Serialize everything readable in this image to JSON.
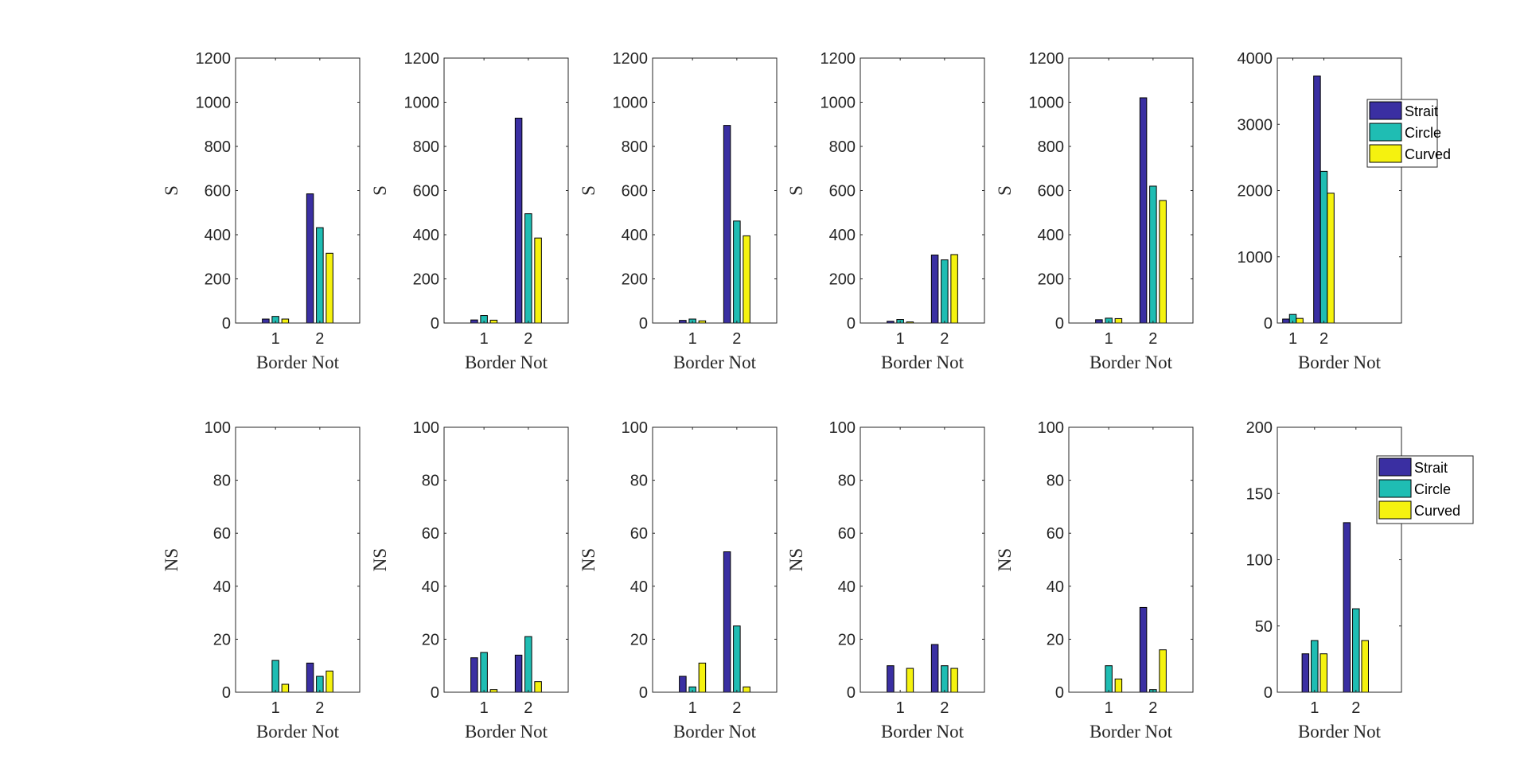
{
  "figure": {
    "background": "#ffffff",
    "series_colors": {
      "Strait": "#3a2fa2",
      "Circle": "#1fbdb3",
      "Curved": "#f5f20f"
    }
  },
  "chart_data": [
    {
      "type": "bar",
      "row": 1,
      "col": 1,
      "categories": [
        "1",
        "2"
      ],
      "xlabel": "Border Not",
      "ylabel": "S",
      "ylim": [
        0,
        1200
      ],
      "yticks": [
        0,
        200,
        400,
        600,
        800,
        1000,
        1200
      ],
      "xlim": [
        0.1,
        2.9
      ],
      "grid": false,
      "legend": false,
      "series": [
        {
          "name": "Strait",
          "values": [
            18,
            585
          ]
        },
        {
          "name": "Circle",
          "values": [
            30,
            432
          ]
        },
        {
          "name": "Curved",
          "values": [
            18,
            316
          ]
        }
      ]
    },
    {
      "type": "bar",
      "row": 1,
      "col": 2,
      "categories": [
        "1",
        "2"
      ],
      "xlabel": "Border Not",
      "ylabel": "S",
      "ylim": [
        0,
        1200
      ],
      "yticks": [
        0,
        200,
        400,
        600,
        800,
        1000,
        1200
      ],
      "xlim": [
        0.1,
        2.9
      ],
      "grid": false,
      "legend": false,
      "series": [
        {
          "name": "Strait",
          "values": [
            14,
            928
          ]
        },
        {
          "name": "Circle",
          "values": [
            34,
            495
          ]
        },
        {
          "name": "Curved",
          "values": [
            13,
            385
          ]
        }
      ]
    },
    {
      "type": "bar",
      "row": 1,
      "col": 3,
      "categories": [
        "1",
        "2"
      ],
      "xlabel": "Border Not",
      "ylabel": "S",
      "ylim": [
        0,
        1200
      ],
      "yticks": [
        0,
        200,
        400,
        600,
        800,
        1000,
        1200
      ],
      "xlim": [
        0.1,
        2.9
      ],
      "grid": false,
      "legend": false,
      "series": [
        {
          "name": "Strait",
          "values": [
            12,
            895
          ]
        },
        {
          "name": "Circle",
          "values": [
            18,
            462
          ]
        },
        {
          "name": "Curved",
          "values": [
            10,
            395
          ]
        }
      ]
    },
    {
      "type": "bar",
      "row": 1,
      "col": 4,
      "categories": [
        "1",
        "2"
      ],
      "xlabel": "Border Not",
      "ylabel": "S",
      "ylim": [
        0,
        1200
      ],
      "yticks": [
        0,
        200,
        400,
        600,
        800,
        1000,
        1200
      ],
      "xlim": [
        0.1,
        2.9
      ],
      "grid": false,
      "legend": false,
      "series": [
        {
          "name": "Strait",
          "values": [
            8,
            308
          ]
        },
        {
          "name": "Circle",
          "values": [
            16,
            286
          ]
        },
        {
          "name": "Curved",
          "values": [
            5,
            310
          ]
        }
      ]
    },
    {
      "type": "bar",
      "row": 1,
      "col": 5,
      "categories": [
        "1",
        "2"
      ],
      "xlabel": "Border Not",
      "ylabel": "S",
      "ylim": [
        0,
        1200
      ],
      "yticks": [
        0,
        200,
        400,
        600,
        800,
        1000,
        1200
      ],
      "xlim": [
        0.1,
        2.9
      ],
      "grid": false,
      "legend": false,
      "series": [
        {
          "name": "Strait",
          "values": [
            15,
            1020
          ]
        },
        {
          "name": "Circle",
          "values": [
            22,
            620
          ]
        },
        {
          "name": "Curved",
          "values": [
            20,
            555
          ]
        }
      ]
    },
    {
      "type": "bar",
      "row": 1,
      "col": 6,
      "categories": [
        "1",
        "2"
      ],
      "xlabel": "Border Not",
      "ylabel": "",
      "ylim": [
        0,
        4000
      ],
      "yticks": [
        0,
        1000,
        2000,
        3000,
        4000
      ],
      "xlim": [
        0.5,
        4.5
      ],
      "grid": false,
      "legend": true,
      "legend_position": "top-right",
      "series": [
        {
          "name": "Strait",
          "values": [
            60,
            3730
          ]
        },
        {
          "name": "Circle",
          "values": [
            130,
            2290
          ]
        },
        {
          "name": "Curved",
          "values": [
            70,
            1960
          ]
        }
      ]
    },
    {
      "type": "bar",
      "row": 2,
      "col": 1,
      "categories": [
        "1",
        "2"
      ],
      "xlabel": "Border Not",
      "ylabel": "NS",
      "ylim": [
        0,
        100
      ],
      "yticks": [
        0,
        20,
        40,
        60,
        80,
        100
      ],
      "xlim": [
        0.1,
        2.9
      ],
      "grid": false,
      "legend": false,
      "series": [
        {
          "name": "Strait",
          "values": [
            0,
            11
          ]
        },
        {
          "name": "Circle",
          "values": [
            12,
            6
          ]
        },
        {
          "name": "Curved",
          "values": [
            3,
            8
          ]
        }
      ]
    },
    {
      "type": "bar",
      "row": 2,
      "col": 2,
      "categories": [
        "1",
        "2"
      ],
      "xlabel": "Border Not",
      "ylabel": "NS",
      "ylim": [
        0,
        100
      ],
      "yticks": [
        0,
        20,
        40,
        60,
        80,
        100
      ],
      "xlim": [
        0.1,
        2.9
      ],
      "grid": false,
      "legend": false,
      "series": [
        {
          "name": "Strait",
          "values": [
            13,
            14
          ]
        },
        {
          "name": "Circle",
          "values": [
            15,
            21
          ]
        },
        {
          "name": "Curved",
          "values": [
            1,
            4
          ]
        }
      ]
    },
    {
      "type": "bar",
      "row": 2,
      "col": 3,
      "categories": [
        "1",
        "2"
      ],
      "xlabel": "Border Not",
      "ylabel": "NS",
      "ylim": [
        0,
        100
      ],
      "yticks": [
        0,
        20,
        40,
        60,
        80,
        100
      ],
      "xlim": [
        0.1,
        2.9
      ],
      "grid": false,
      "legend": false,
      "series": [
        {
          "name": "Strait",
          "values": [
            6,
            53
          ]
        },
        {
          "name": "Circle",
          "values": [
            2,
            25
          ]
        },
        {
          "name": "Curved",
          "values": [
            11,
            2
          ]
        }
      ]
    },
    {
      "type": "bar",
      "row": 2,
      "col": 4,
      "categories": [
        "1",
        "2"
      ],
      "xlabel": "Border Not",
      "ylabel": "NS",
      "ylim": [
        0,
        100
      ],
      "yticks": [
        0,
        20,
        40,
        60,
        80,
        100
      ],
      "xlim": [
        0.1,
        2.9
      ],
      "grid": false,
      "legend": false,
      "series": [
        {
          "name": "Strait",
          "values": [
            10,
            18
          ]
        },
        {
          "name": "Circle",
          "values": [
            0,
            10
          ]
        },
        {
          "name": "Curved",
          "values": [
            9,
            9
          ]
        }
      ]
    },
    {
      "type": "bar",
      "row": 2,
      "col": 5,
      "categories": [
        "1",
        "2"
      ],
      "xlabel": "Border Not",
      "ylabel": "NS",
      "ylim": [
        0,
        100
      ],
      "yticks": [
        0,
        20,
        40,
        60,
        80,
        100
      ],
      "xlim": [
        0.1,
        2.9
      ],
      "grid": false,
      "legend": false,
      "series": [
        {
          "name": "Strait",
          "values": [
            0,
            32
          ]
        },
        {
          "name": "Circle",
          "values": [
            10,
            1
          ]
        },
        {
          "name": "Curved",
          "values": [
            5,
            16
          ]
        }
      ]
    },
    {
      "type": "bar",
      "row": 2,
      "col": 6,
      "categories": [
        "1",
        "2"
      ],
      "xlabel": "Border Not",
      "ylabel": "",
      "ylim": [
        0,
        200
      ],
      "yticks": [
        0,
        50,
        100,
        150,
        200
      ],
      "xlim": [
        0.1,
        3.1
      ],
      "grid": false,
      "legend": true,
      "legend_position": "top-right",
      "series": [
        {
          "name": "Strait",
          "values": [
            29,
            128
          ]
        },
        {
          "name": "Circle",
          "values": [
            39,
            63
          ]
        },
        {
          "name": "Curved",
          "values": [
            29,
            39
          ]
        }
      ]
    }
  ]
}
